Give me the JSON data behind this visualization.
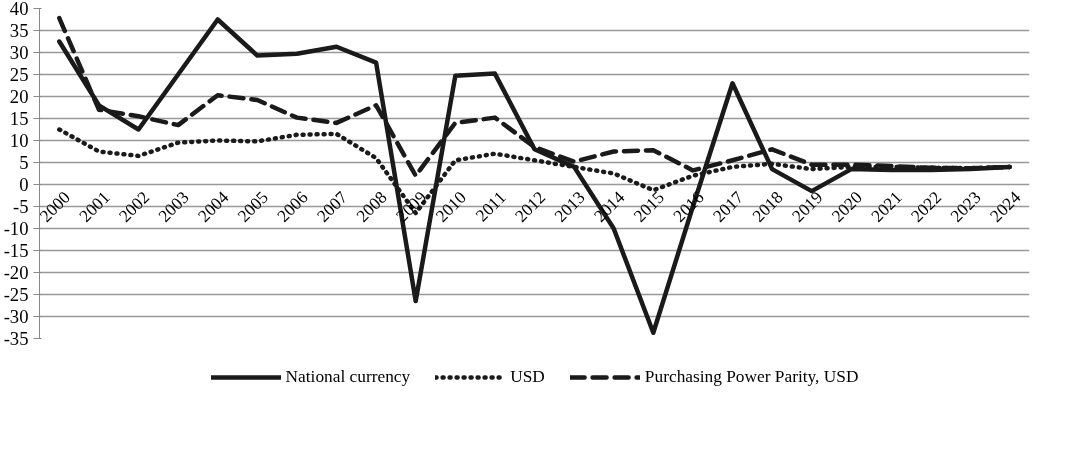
{
  "chart_data": {
    "type": "line",
    "categories": [
      "2000",
      "2001",
      "2002",
      "2003",
      "2004",
      "2005",
      "2006",
      "2007",
      "2008",
      "2009",
      "2010",
      "2011",
      "2012",
      "2013",
      "2014",
      "2015",
      "2016",
      "2017",
      "2018",
      "2019",
      "2020",
      "2021",
      "2022",
      "2023",
      "2024"
    ],
    "series": [
      {
        "name": "National currency",
        "color": "#1a1a1a",
        "line_style": "solid",
        "values": [
          32.5,
          18,
          12.5,
          25,
          37.5,
          29.3,
          29.7,
          31.3,
          27.7,
          -26.5,
          24.7,
          25.2,
          8,
          4,
          -10,
          -33.7,
          -5,
          23,
          3.5,
          -1.5,
          3.5,
          3.3,
          3.3,
          3.5,
          4
        ]
      },
      {
        "name": "USD",
        "color": "#1a1a1a",
        "line_style": "dotted",
        "values": [
          12.5,
          7.5,
          6.5,
          9.5,
          10,
          9.8,
          11.3,
          11.5,
          6,
          -6.5,
          5.5,
          7,
          5.5,
          4,
          2.5,
          -1.3,
          2,
          4,
          4.7,
          3.5,
          4,
          4,
          3.8,
          3.7,
          4
        ]
      },
      {
        "name": "Purchasing Power Parity, USD",
        "color": "#1a1a1a",
        "line_style": "dashed",
        "values": [
          37.8,
          17,
          15.5,
          13.5,
          20.3,
          19.2,
          15.2,
          14,
          18,
          2,
          14,
          15.2,
          8.5,
          5.2,
          7.5,
          7.8,
          3.2,
          5.5,
          8,
          4.5,
          4.5,
          4.2,
          3.8,
          3.7,
          4
        ]
      }
    ],
    "ylim": [
      -35,
      40
    ],
    "yticks": [
      -35,
      -30,
      -25,
      -20,
      -15,
      -10,
      -5,
      0,
      5,
      10,
      15,
      20,
      25,
      30,
      35,
      40
    ],
    "grid": "y",
    "legend": "bottom",
    "marker": "none"
  }
}
